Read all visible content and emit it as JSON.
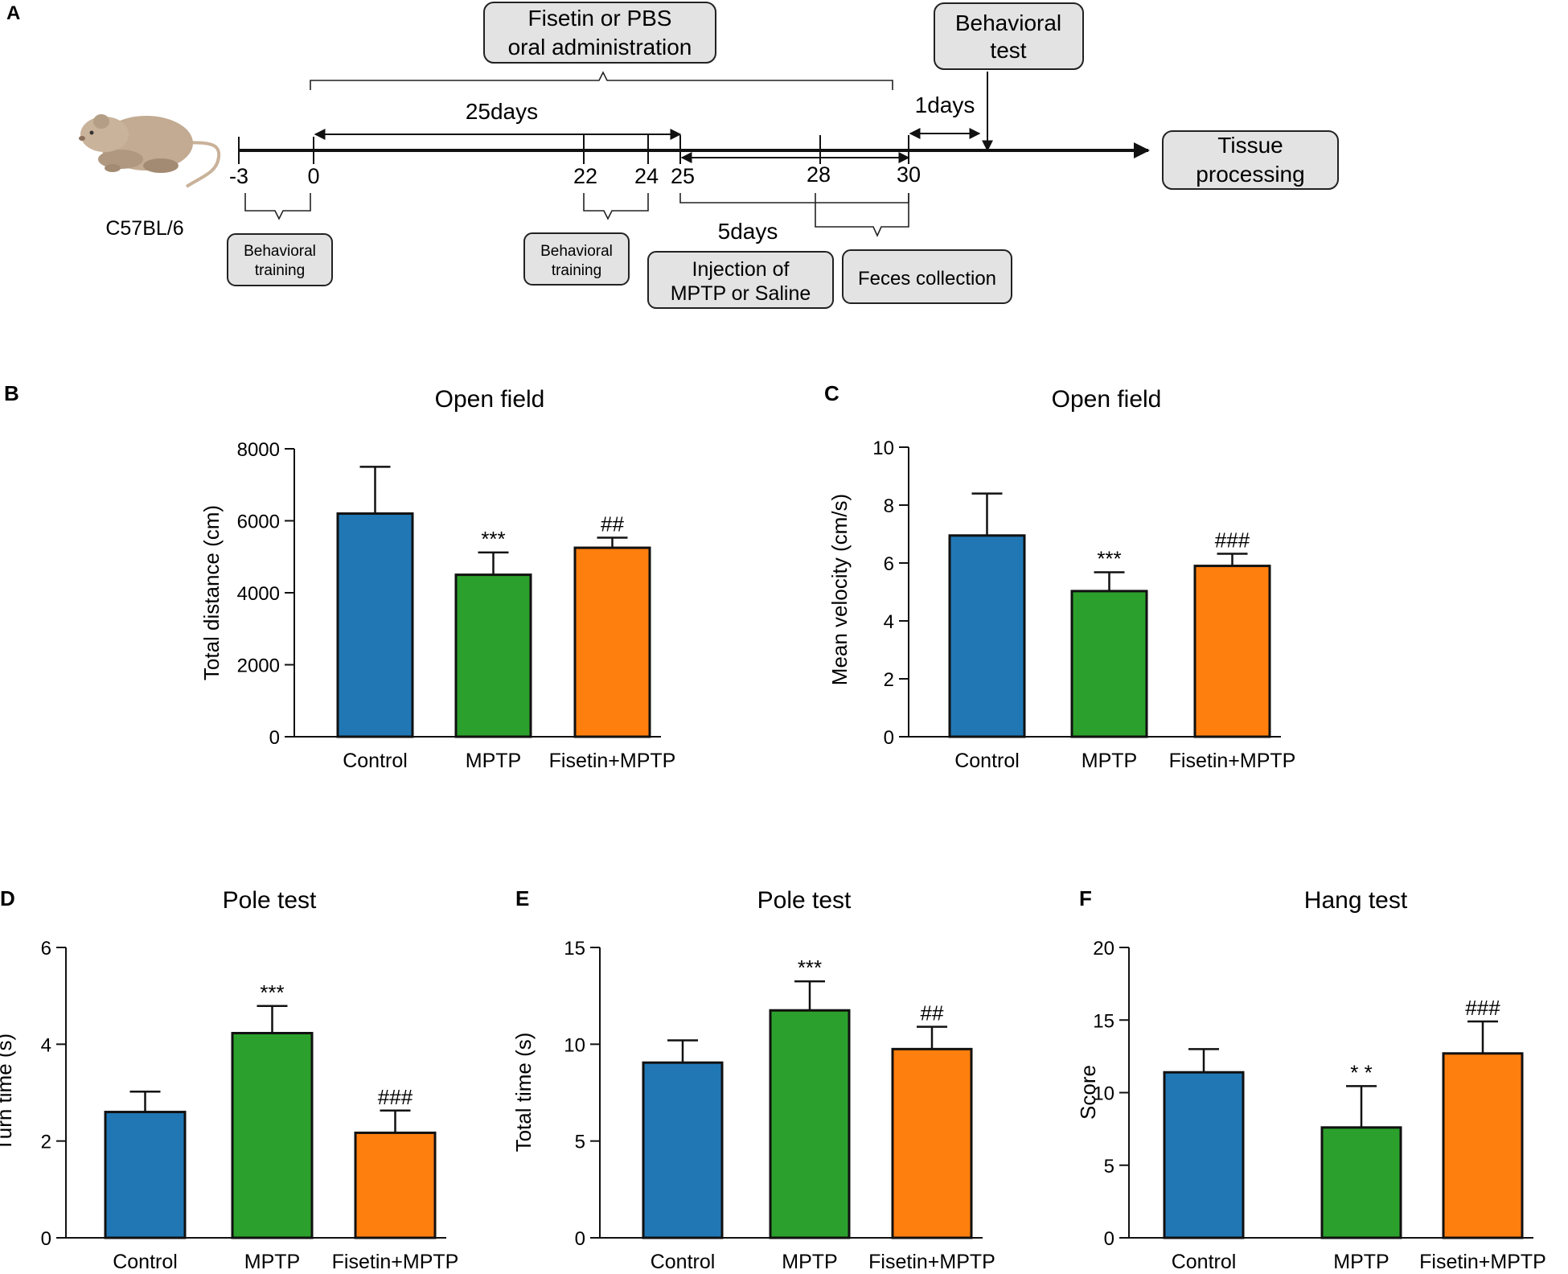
{
  "panel_labels": [
    "A",
    "B",
    "C",
    "D",
    "E",
    "F"
  ],
  "timeline": {
    "mouse_strain": "C57BL/6",
    "boxes": {
      "oral_line1": "Fisetin or PBS",
      "oral_line2": "oral administration",
      "behav_test_line1": "Behavioral",
      "behav_test_line2": "test",
      "tissue_line1": "Tissue",
      "tissue_line2": "processing",
      "training1_line1": "Behavioral",
      "training1_line2": "training",
      "training2_line1": "Behavioral",
      "training2_line2": "training",
      "injection_line1": "Injection of",
      "injection_line2": "MPTP or Saline",
      "feces": "Feces collection"
    },
    "durations": {
      "days25": "25days",
      "days5": "5days",
      "days1": "1days"
    },
    "ticks": [
      "-3",
      "0",
      "22",
      "24",
      "25",
      "28",
      "30"
    ]
  },
  "colors": {
    "control": "#2177b4",
    "mptp": "#2ca02c",
    "fisetin": "#ff7f0e",
    "stroke": "#111111"
  },
  "chart_data": [
    {
      "id": "B",
      "type": "bar",
      "title": "Open field",
      "ylabel": "Total distance (cm)",
      "categories": [
        "Control",
        "MPTP",
        "Fisetin+MPTP"
      ],
      "values": [
        6200,
        4500,
        5250
      ],
      "errors": [
        1300,
        620,
        280
      ],
      "annotations": [
        "",
        "***",
        "##"
      ],
      "ylim": [
        0,
        8000
      ],
      "yticks": [
        0,
        2000,
        4000,
        6000,
        8000
      ]
    },
    {
      "id": "C",
      "type": "bar",
      "title": "Open field",
      "ylabel": "Mean velocity (cm/s)",
      "categories": [
        "Control",
        "MPTP",
        "Fisetin+MPTP"
      ],
      "values": [
        6.95,
        5.03,
        5.9
      ],
      "errors": [
        1.45,
        0.65,
        0.42
      ],
      "annotations": [
        "",
        "***",
        "###"
      ],
      "ylim": [
        0,
        10
      ],
      "yticks": [
        0,
        2,
        4,
        6,
        8,
        10
      ]
    },
    {
      "id": "D",
      "type": "bar",
      "title": "Pole test",
      "ylabel": "Turn time (s)",
      "categories": [
        "Control",
        "MPTP",
        "Fisetin+MPTP"
      ],
      "values": [
        2.6,
        4.23,
        2.17
      ],
      "errors": [
        0.42,
        0.56,
        0.46
      ],
      "annotations": [
        "",
        "***",
        "###"
      ],
      "ylim": [
        0,
        6
      ],
      "yticks": [
        0,
        2,
        4,
        6
      ]
    },
    {
      "id": "E",
      "type": "bar",
      "title": "Pole test",
      "ylabel": "Total  time (s)",
      "categories": [
        "Control",
        "MPTP",
        "Fisetin+MPTP"
      ],
      "values": [
        9.05,
        11.75,
        9.75
      ],
      "errors": [
        1.15,
        1.5,
        1.15
      ],
      "annotations": [
        "",
        "***",
        "##"
      ],
      "ylim": [
        0,
        15
      ],
      "yticks": [
        0,
        5,
        10,
        15
      ]
    },
    {
      "id": "F",
      "type": "bar",
      "title": "Hang test",
      "ylabel": "Score",
      "categories": [
        "Control",
        "MPTP",
        "Fisetin+MPTP"
      ],
      "values": [
        11.4,
        7.6,
        12.7
      ],
      "errors": [
        1.6,
        2.85,
        2.2
      ],
      "annotations": [
        "",
        "* *",
        "###"
      ],
      "ylim": [
        0,
        20
      ],
      "yticks": [
        0,
        5,
        10,
        15,
        20
      ]
    }
  ]
}
